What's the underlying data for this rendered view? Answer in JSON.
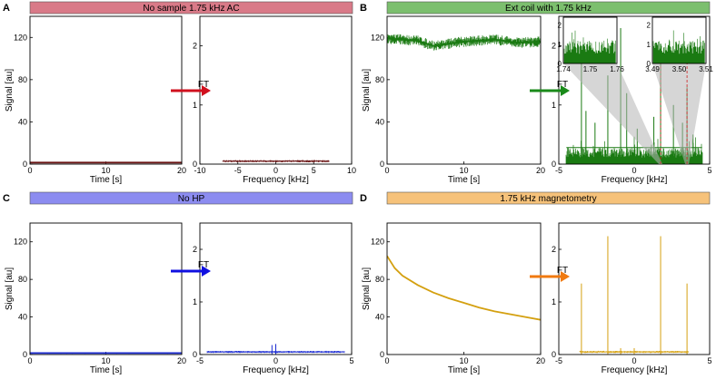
{
  "panels": [
    {
      "letter": "A",
      "title": "No sample 1.75 kHz AC",
      "color": "#d97a88",
      "arrow": "#d0101e",
      "trace": "#6b1515"
    },
    {
      "letter": "B",
      "title": "Ext coil with 1.75 kHz",
      "color": "#7cbf6e",
      "arrow": "#1a8a1a",
      "trace": "#1a7a12"
    },
    {
      "letter": "C",
      "title": "No HP",
      "color": "#8c8cf0",
      "arrow": "#1010e0",
      "trace": "#1a2ad0"
    },
    {
      "letter": "D",
      "title": "1.75 kHz magnetometry",
      "color": "#f6c27a",
      "arrow": "#f07a10",
      "trace": "#d4a010"
    }
  ],
  "arrow_label": "FT",
  "chart_data": [
    {
      "panel": "A",
      "type": "line",
      "role": "time",
      "xlabel": "Time [s]",
      "ylabel": "Signal [au]",
      "xlim": [
        0,
        20
      ],
      "ylim": [
        0,
        140
      ],
      "xticks": [
        0,
        10,
        20
      ],
      "yticks": [
        0,
        40,
        80,
        120
      ],
      "series": [
        {
          "x": [
            0,
            20
          ],
          "y": [
            1.5,
            1.5
          ]
        }
      ]
    },
    {
      "panel": "A",
      "type": "line",
      "role": "spectrum",
      "xlabel": "Frequency [kHz]",
      "xlim": [
        -10,
        10
      ],
      "ylim": [
        0,
        2.5
      ],
      "xticks": [
        -10,
        -5,
        0,
        5,
        10
      ],
      "yticks": [
        0,
        1,
        2
      ],
      "series": [
        {
          "x": [
            -7,
            7
          ],
          "y": [
            0.05,
            0.05
          ]
        }
      ]
    },
    {
      "panel": "B",
      "type": "line",
      "role": "time",
      "xlabel": "Time [s]",
      "ylabel": "Signal [au]",
      "xlim": [
        0,
        20
      ],
      "ylim": [
        0,
        140
      ],
      "xticks": [
        0,
        10,
        20
      ],
      "yticks": [
        0,
        40,
        80,
        120
      ],
      "series": [
        {
          "x": [
            0,
            4,
            6,
            8,
            10,
            14,
            17,
            20
          ],
          "y": [
            119,
            117,
            112,
            114,
            116,
            118,
            115,
            116
          ]
        }
      ]
    },
    {
      "panel": "B",
      "type": "line",
      "role": "spectrum",
      "xlabel": "Frequency [kHz]",
      "xlim": [
        -5,
        5
      ],
      "ylim": [
        0,
        2.5
      ],
      "xticks": [
        -5,
        0,
        5
      ],
      "yticks": [
        0,
        1,
        2
      ],
      "series": [
        {
          "x": [
            -4.5,
            4.5
          ],
          "y": [
            0.28,
            0.28
          ]
        }
      ],
      "peaks": [
        [
          -3.5,
          1.9
        ],
        [
          -3.2,
          0.9
        ],
        [
          -2.6,
          0.7
        ],
        [
          -1.75,
          1.5
        ],
        [
          -0.9,
          2.3
        ],
        [
          -0.5,
          1.2
        ],
        [
          0.2,
          0.6
        ],
        [
          1.3,
          0.8
        ],
        [
          1.75,
          2.0
        ],
        [
          2.6,
          1.0
        ],
        [
          3.2,
          0.7
        ],
        [
          3.5,
          1.3
        ],
        [
          3.9,
          0.5
        ]
      ],
      "insets": [
        {
          "xlim": [
            1.74,
            1.76
          ],
          "ylim": [
            0,
            2.4
          ],
          "xticks": [
            1.74,
            1.75,
            1.76
          ],
          "yticks": [
            0,
            1,
            2
          ]
        },
        {
          "xlim": [
            3.49,
            3.51
          ],
          "ylim": [
            0,
            2.4
          ],
          "xticks": [
            3.49,
            3.5,
            3.51
          ],
          "yticks": [
            0,
            1,
            2
          ]
        }
      ]
    },
    {
      "panel": "C",
      "type": "line",
      "role": "time",
      "xlabel": "Time [s]",
      "ylabel": "Signal [au]",
      "xlim": [
        0,
        20
      ],
      "ylim": [
        0,
        140
      ],
      "xticks": [
        0,
        10,
        20
      ],
      "yticks": [
        0,
        40,
        80,
        120
      ],
      "series": [
        {
          "x": [
            0,
            20
          ],
          "y": [
            1.5,
            1.5
          ]
        }
      ]
    },
    {
      "panel": "C",
      "type": "line",
      "role": "spectrum",
      "xlabel": "Frequency [kHz]",
      "xlim": [
        -5,
        5
      ],
      "ylim": [
        0,
        2.5
      ],
      "xticks": [
        -5,
        0,
        5
      ],
      "yticks": [
        0,
        1,
        2
      ],
      "series": [
        {
          "x": [
            -4.5,
            4.5
          ],
          "y": [
            0.05,
            0.05
          ]
        }
      ],
      "peaks": [
        [
          -0.25,
          0.18
        ],
        [
          0,
          0.2
        ]
      ]
    },
    {
      "panel": "D",
      "type": "line",
      "role": "time",
      "xlabel": "Time [s]",
      "ylabel": "Signal [au]",
      "xlim": [
        0,
        20
      ],
      "ylim": [
        0,
        140
      ],
      "xticks": [
        0,
        10,
        20
      ],
      "yticks": [
        0,
        40,
        80,
        120
      ],
      "series": [
        {
          "x": [
            0,
            1,
            2,
            4,
            6,
            8,
            10,
            12,
            14,
            16,
            18,
            20
          ],
          "y": [
            105,
            92,
            84,
            74,
            66,
            60,
            55,
            50,
            46,
            43,
            40,
            37
          ]
        }
      ]
    },
    {
      "panel": "D",
      "type": "line",
      "role": "spectrum",
      "xlabel": "Frequency [kHz]",
      "xlim": [
        -5,
        5
      ],
      "ylim": [
        0,
        2.5
      ],
      "xticks": [
        -5,
        0,
        5
      ],
      "yticks": [
        0,
        1,
        2
      ],
      "series": [
        {
          "x": [
            -3.6,
            3.6
          ],
          "y": [
            0.05,
            0.05
          ]
        }
      ],
      "peaks": [
        [
          -3.5,
          1.35
        ],
        [
          -1.75,
          2.25
        ],
        [
          -0.9,
          0.12
        ],
        [
          0,
          0.12
        ],
        [
          1.75,
          2.25
        ],
        [
          3.5,
          1.35
        ]
      ]
    }
  ]
}
